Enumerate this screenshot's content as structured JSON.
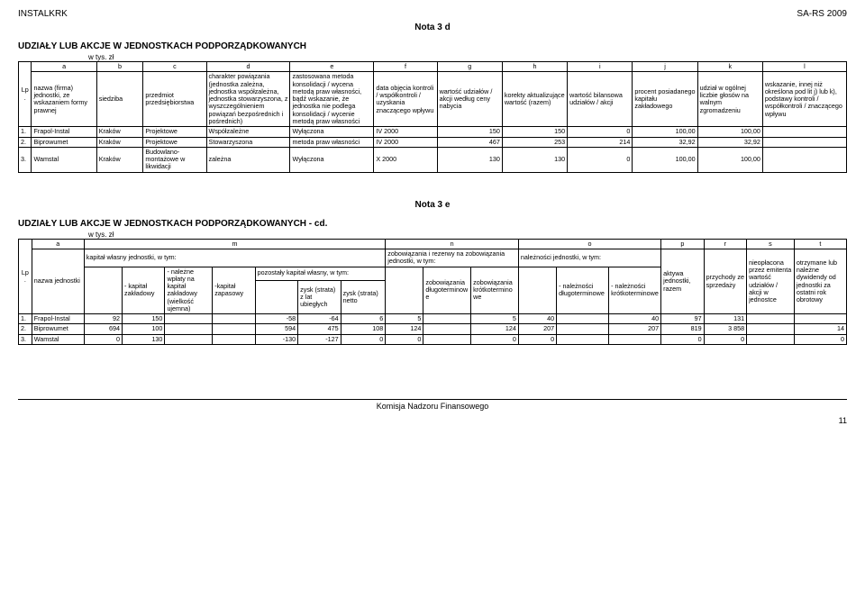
{
  "header": {
    "left": "INSTALKRK",
    "right": "SA-RS 2009",
    "title": "Nota 3 d"
  },
  "section1": {
    "title": "UDZIAŁY LUB AKCJE W JEDNOSTKACH PODPORZĄDKOWANYCH",
    "unit": "w tys. zł",
    "letters": [
      "a",
      "b",
      "c",
      "d",
      "e",
      "f",
      "g",
      "h",
      "i",
      "j",
      "k",
      "l"
    ],
    "lp": "Lp.",
    "cols": [
      "nazwa (firma) jednostki, ze wskazaniem formy prawnej",
      "siedziba",
      "przedmiot przedsiębiorstwa",
      "charakter powiązania (jednostka zależna, jednostka współzależna, jednostka stowarzyszona, z wyszczególnieniem powiązań bezpośrednich i pośrednich)",
      "zastosowana metoda konsolidacji / wycena metodą praw własności, bądź wskazanie, że jednostka nie podlega konsolidacji / wycenie metodą praw własności",
      "data objęcia kontroli / współkontroli / uzyskania znaczącego wpływu",
      "wartość udziałów / akcji według ceny nabycia",
      "korekty aktualizujące wartość (razem)",
      "wartość bilansowa udziałów / akcji",
      "procent posiadanego kapitału zakładowego",
      "udział w ogólnej liczbie głosów na walnym zgromadzeniu",
      "wskazanie, innej niż określona pod lit j) lub k), podstawy kontroli / współkontroli / znaczącego wpływu"
    ],
    "rows": [
      {
        "n": "1.",
        "a": "Frapol-Instal",
        "b": "Kraków",
        "c": "Projektowe",
        "d": "Współzależne",
        "e": "Wyłączona",
        "f": "IV 2000",
        "g": "150",
        "h": "150",
        "i": "0",
        "j": "100,00",
        "k": "100,00",
        "l": ""
      },
      {
        "n": "2.",
        "a": "Biprowumet",
        "b": "Kraków",
        "c": "Projektowe",
        "d": "Stowarzyszona",
        "e": "metoda praw własności",
        "f": "IV 2000",
        "g": "467",
        "h": "253",
        "i": "214",
        "j": "32,92",
        "k": "32,92",
        "l": ""
      },
      {
        "n": "3.",
        "a": "Wamstal",
        "b": "Kraków",
        "c": "Budowlano-montażowe w likwidacji",
        "d": "zależna",
        "e": "Wyłączona",
        "f": "X 2000",
        "g": "130",
        "h": "130",
        "i": "0",
        "j": "100,00",
        "k": "100,00",
        "l": ""
      }
    ]
  },
  "note2": "Nota 3 e",
  "section2": {
    "title": "UDZIAŁY LUB AKCJE W JEDNOSTKACH PODPORZĄDKOWANYCH - cd.",
    "unit": "w tys. zł",
    "letters": [
      "a",
      "m",
      "n",
      "o",
      "p",
      "r",
      "s",
      "t"
    ],
    "lp": "Lp.",
    "h_a": "nazwa jednostki",
    "h_m_top": "kapitał własny jednostki, w tym:",
    "h_m_sub_top": "pozostały kapitał własny, w tym:",
    "h_m1": "- kapitał zakładowy",
    "h_m2": "- należne wpłaty na kapitał zakładowy (wielkość ujemna)",
    "h_m3": "-kapitał zapasowy",
    "h_m4": "zysk (strata) z lat ubiegłych",
    "h_m5": "zysk (strata) netto",
    "h_n_top": "zobowiązania i rezerwy na zobowiązania jednostki, w tym:",
    "h_n1": "zobowiązania długoterminowe",
    "h_n2": "zobowiązania krótkoterminowe",
    "h_o_top": "należności jednostki, w tym:",
    "h_o1": "- należności długoterminowe",
    "h_o2": "- należności krótkoterminowe",
    "h_p": "aktywa jednostki, razem",
    "h_r": "przychody ze sprzedaży",
    "h_s": "nieopłacona przez emitenta wartość udziałów / akcji w jednostce",
    "h_t": "otrzymane lub należne dywidendy od jednostki za ostatni rok obrotowy",
    "rows": [
      {
        "n": "1.",
        "a": "Frapol-Instal",
        "m0": "92",
        "m1": "150",
        "m2": "",
        "m3": "",
        "m_s": "-58",
        "m4": "-64",
        "m5": "6",
        "n0": "5",
        "n1": "",
        "n2": "5",
        "o0": "40",
        "o1": "",
        "o2": "40",
        "p": "97",
        "r": "131",
        "s": "",
        "t": ""
      },
      {
        "n": "2.",
        "a": "Biprowumet",
        "m0": "694",
        "m1": "100",
        "m2": "",
        "m3": "",
        "m_s": "594",
        "m4": "475",
        "m5": "108",
        "n0": "124",
        "n1": "",
        "n2": "124",
        "o0": "207",
        "o1": "",
        "o2": "207",
        "p": "819",
        "r": "3 858",
        "s": "",
        "t": "14"
      },
      {
        "n": "3.",
        "a": "Wamstal",
        "m0": "0",
        "m1": "130",
        "m2": "",
        "m3": "",
        "m_s": "-130",
        "m4": "-127",
        "m5": "0",
        "n0": "0",
        "n1": "",
        "n2": "0",
        "o0": "0",
        "o1": "",
        "o2": "",
        "p": "0",
        "r": "0",
        "s": "",
        "t": "0"
      }
    ]
  },
  "footer": "Komisja Nadzoru Finansowego",
  "pagenum": "11"
}
